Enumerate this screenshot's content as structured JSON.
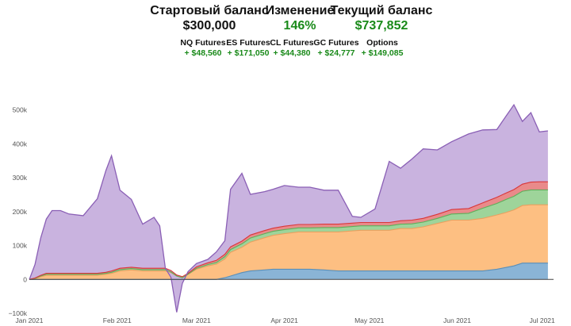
{
  "summary": {
    "start_label": "Стартовый баланс",
    "start_value": "$300,000",
    "change_label": "Изменение",
    "change_value": "146%",
    "current_label": "Текущий баланс",
    "current_value": "$737,852",
    "breakdown": [
      {
        "label": "NQ Futures",
        "value": "+ $48,560"
      },
      {
        "label": "ES Futures",
        "value": "+ $171,050"
      },
      {
        "label": "CL Futures",
        "value": "+ $44,380"
      },
      {
        "label": "GC Futures",
        "value": "+ $24,777"
      },
      {
        "label": "Options",
        "value": "+ $149,085"
      }
    ]
  },
  "colors": {
    "nq": "#8ab4d6",
    "es": "#fdbf82",
    "cl": "#9ed49a",
    "gc": "#e98a8a",
    "options": "#c9b3df",
    "axis": "#555555",
    "grid": "#eeeeee"
  },
  "chart_data": {
    "type": "area",
    "x_axis": {
      "type": "date",
      "range": [
        "2021-01-01",
        "2021-07-05"
      ],
      "tick_labels": [
        "Jan 2021",
        "Feb 2021",
        "Mar 2021",
        "Apr 2021",
        "May 2021",
        "Jun 2021",
        "Jul 2021"
      ],
      "tick_dates": [
        "2021-01-01",
        "2021-02-01",
        "2021-03-01",
        "2021-04-01",
        "2021-05-01",
        "2021-06-01",
        "2021-07-01"
      ]
    },
    "y_axis": {
      "range": [
        -100000,
        520000
      ],
      "tick_values": [
        -100000,
        0,
        100000,
        200000,
        300000,
        400000,
        500000
      ],
      "tick_labels": [
        "−100k",
        "0",
        "100k",
        "200k",
        "300k",
        "400k",
        "500k"
      ]
    },
    "stacked": true,
    "grid": false,
    "legend": "none",
    "x": [
      "2021-01-01",
      "2021-01-03",
      "2021-01-05",
      "2021-01-07",
      "2021-01-09",
      "2021-01-12",
      "2021-01-15",
      "2021-01-20",
      "2021-01-25",
      "2021-01-28",
      "2021-01-30",
      "2021-02-02",
      "2021-02-06",
      "2021-02-10",
      "2021-02-14",
      "2021-02-16",
      "2021-02-18",
      "2021-02-20",
      "2021-02-22",
      "2021-02-24",
      "2021-02-26",
      "2021-03-01",
      "2021-03-05",
      "2021-03-08",
      "2021-03-11",
      "2021-03-13",
      "2021-03-17",
      "2021-03-20",
      "2021-03-25",
      "2021-03-28",
      "2021-04-01",
      "2021-04-06",
      "2021-04-10",
      "2021-04-15",
      "2021-04-20",
      "2021-04-25",
      "2021-04-28",
      "2021-05-03",
      "2021-05-08",
      "2021-05-12",
      "2021-05-16",
      "2021-05-20",
      "2021-05-25",
      "2021-05-30",
      "2021-06-05",
      "2021-06-10",
      "2021-06-15",
      "2021-06-18",
      "2021-06-21",
      "2021-06-24",
      "2021-06-27",
      "2021-06-30",
      "2021-07-03"
    ],
    "series": [
      {
        "name": "NQ Futures",
        "values": [
          0,
          0,
          0,
          0,
          0,
          0,
          0,
          0,
          0,
          0,
          0,
          0,
          0,
          0,
          0,
          0,
          0,
          0,
          0,
          0,
          0,
          0,
          0,
          0,
          5000,
          10000,
          20000,
          25000,
          28000,
          30000,
          30000,
          30000,
          30000,
          28000,
          25000,
          25000,
          25000,
          25000,
          25000,
          25000,
          25000,
          25000,
          25000,
          25000,
          25000,
          25000,
          30000,
          35000,
          40000,
          48000,
          48000,
          48000,
          48000
        ]
      },
      {
        "name": "ES Futures",
        "values": [
          0,
          2000,
          8000,
          12000,
          12000,
          12000,
          12000,
          12000,
          12000,
          15000,
          18000,
          25000,
          28000,
          25000,
          25000,
          25000,
          25000,
          20000,
          10000,
          5000,
          15000,
          30000,
          40000,
          45000,
          55000,
          70000,
          75000,
          85000,
          95000,
          100000,
          105000,
          110000,
          110000,
          112000,
          115000,
          118000,
          120000,
          120000,
          120000,
          125000,
          125000,
          130000,
          140000,
          150000,
          150000,
          155000,
          160000,
          162000,
          165000,
          170000,
          172000,
          172000,
          172000
        ]
      },
      {
        "name": "CL Futures",
        "values": [
          0,
          1000,
          2000,
          3000,
          3000,
          3000,
          3000,
          3000,
          3000,
          3000,
          3000,
          4000,
          4000,
          4000,
          4000,
          4000,
          4000,
          2000,
          0,
          0,
          0,
          3000,
          4000,
          5000,
          7000,
          8000,
          10000,
          12000,
          12000,
          12000,
          12000,
          12000,
          12000,
          13000,
          13000,
          13000,
          13000,
          13000,
          13000,
          13000,
          14000,
          14000,
          15000,
          18000,
          20000,
          30000,
          34000,
          38000,
          40000,
          42000,
          44000,
          44000,
          44000
        ]
      },
      {
        "name": "GC Futures",
        "values": [
          0,
          1000,
          2000,
          3000,
          3000,
          3000,
          3000,
          3000,
          3000,
          3000,
          4000,
          4000,
          4000,
          4000,
          4000,
          4000,
          4000,
          4000,
          3000,
          3000,
          3000,
          4000,
          5000,
          6000,
          7000,
          8000,
          8000,
          9000,
          9000,
          9000,
          10000,
          10000,
          10000,
          10000,
          10000,
          10000,
          10000,
          10000,
          10000,
          10000,
          11000,
          11000,
          12000,
          13000,
          14000,
          16000,
          18000,
          19000,
          20000,
          21000,
          23000,
          24000,
          24000
        ]
      },
      {
        "name": "Options",
        "values": [
          0,
          40000,
          110000,
          160000,
          185000,
          185000,
          175000,
          170000,
          220000,
          300000,
          340000,
          230000,
          200000,
          130000,
          150000,
          125000,
          0,
          -20000,
          -110000,
          -20000,
          5000,
          10000,
          10000,
          25000,
          40000,
          170000,
          200000,
          120000,
          115000,
          115000,
          120000,
          110000,
          110000,
          100000,
          100000,
          20000,
          15000,
          40000,
          180000,
          155000,
          180000,
          205000,
          190000,
          200000,
          220000,
          215000,
          200000,
          225000,
          250000,
          185000,
          205000,
          147000,
          150000
        ]
      }
    ]
  }
}
